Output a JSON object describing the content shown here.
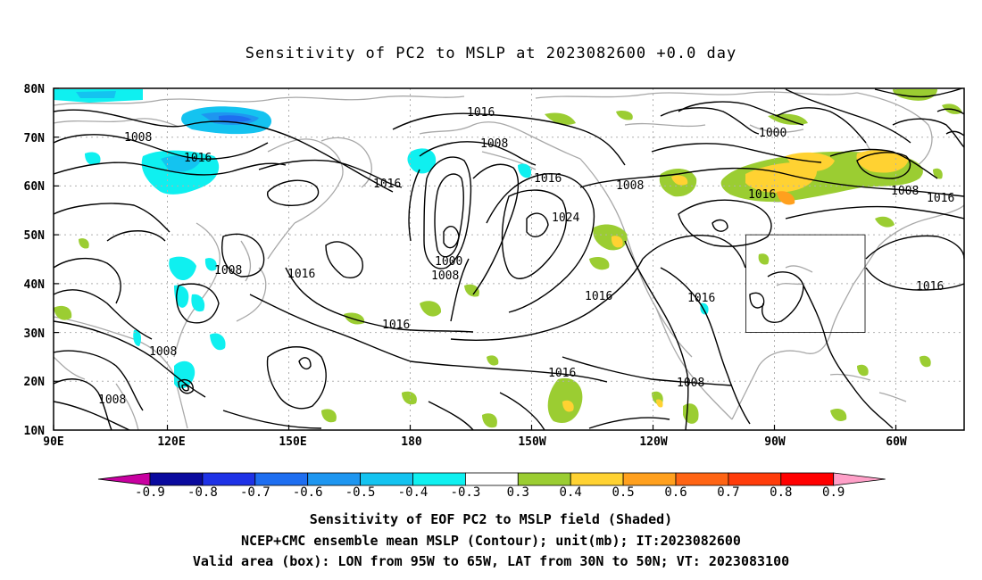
{
  "title": "Sensitivity of PC2 to MSLP at 2023082600 +0.0 day",
  "map": {
    "lon_labels": [
      "90E",
      "120E",
      "150E",
      "180",
      "150W",
      "120W",
      "90W",
      "60W"
    ],
    "lat_labels": [
      "80N",
      "70N",
      "60N",
      "50N",
      "40N",
      "30N",
      "20N",
      "10N"
    ],
    "contour_labels": [
      "1016",
      "1008",
      "1016",
      "1016",
      "1008",
      "1016",
      "1024",
      "1008",
      "1000",
      "1016",
      "1008",
      "1016",
      "1016",
      "1016",
      "1008",
      "1008",
      "1008",
      "1016",
      "1000",
      "1008",
      "1016",
      "1016",
      "1016",
      "1008"
    ],
    "valid_box": {
      "lon_from": "95W",
      "lon_to": "65W",
      "lat_from": "30N",
      "lat_to": "50N"
    }
  },
  "colorbar": {
    "labels": [
      "-0.9",
      "-0.8",
      "-0.7",
      "-0.6",
      "-0.5",
      "-0.4",
      "-0.3",
      "0.3",
      "0.4",
      "0.5",
      "0.6",
      "0.7",
      "0.8",
      "0.9"
    ],
    "colors": [
      "#0a0a9e",
      "#1e32e6",
      "#1e6ef0",
      "#1e96f0",
      "#14c3f0",
      "#0ff0f0",
      "#ffffff",
      "#9bcd32",
      "#ffd232",
      "#ffa01e",
      "#ff6414",
      "#ff3c0a",
      "#ff0000"
    ],
    "low_color": "#c800a0",
    "high_color": "#ffa0c8"
  },
  "caption": {
    "line1": "Sensitivity of EOF PC2 to MSLP field (Shaded)",
    "line2": "NCEP+CMC ensemble mean MSLP (Contour); unit(mb); IT:2023082600",
    "line3": "Valid area (box): LON from 95W to 65W, LAT from 30N to 50N; VT: 2023083100"
  }
}
